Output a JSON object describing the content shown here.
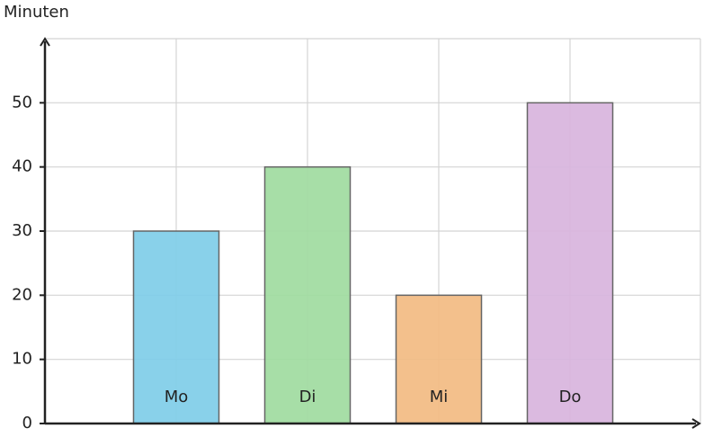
{
  "chart_data": {
    "type": "bar",
    "y_label": "Minuten",
    "categories": [
      "Mo",
      "Di",
      "Mi",
      "Do"
    ],
    "values": [
      30,
      40,
      20,
      50
    ],
    "colors": [
      "#7fcde8",
      "#9fdb9f",
      "#f2bb82",
      "#d8b4dd"
    ],
    "ylim": [
      0,
      60
    ],
    "yticks": [
      0,
      10,
      20,
      30,
      40,
      50
    ],
    "grid": true
  }
}
